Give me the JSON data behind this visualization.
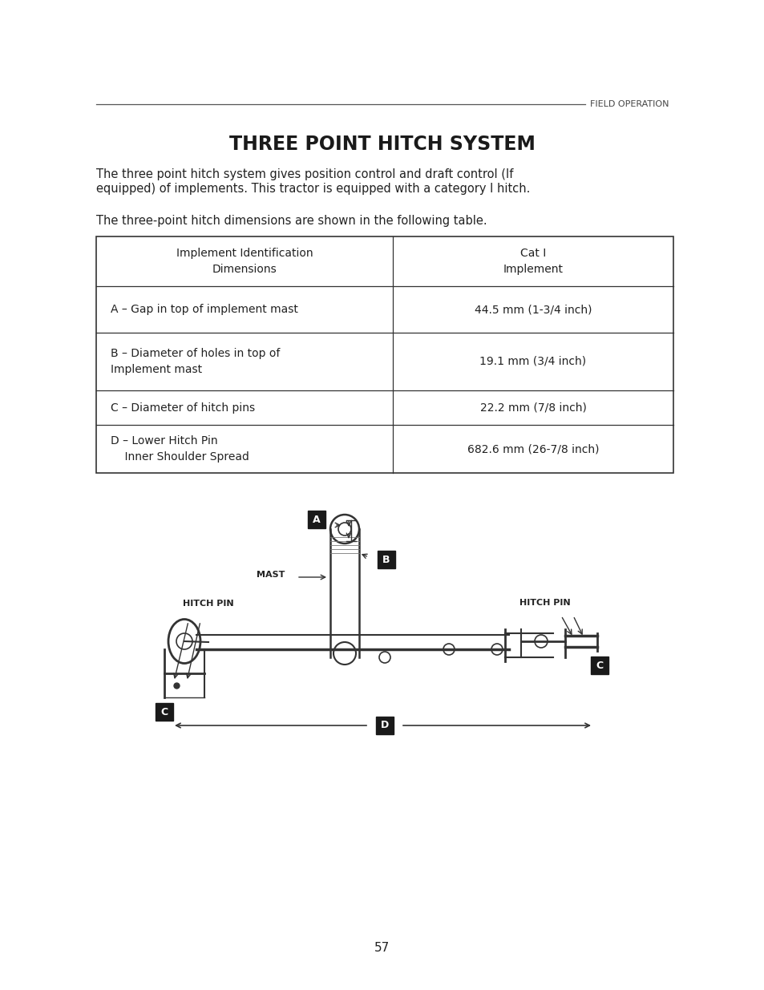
{
  "bg_color": "#ffffff",
  "header_line_color": "#555555",
  "header_text": "FIELD OPERATION",
  "title": "THREE POINT HITCH SYSTEM",
  "para1": "The three point hitch system gives position control and draft control (If\nequipped) of implements. This tractor is equipped with a category I hitch.",
  "para2": "The three-point hitch dimensions are shown in the following table.",
  "table_headers": [
    "Implement Identification\nDimensions",
    "Cat I\nImplement"
  ],
  "table_rows": [
    [
      "A – Gap in top of implement mast",
      "44.5 mm (1-3/4 inch)"
    ],
    [
      "B – Diameter of holes in top of\nImplement mast",
      "19.1 mm (3/4 inch)"
    ],
    [
      "C – Diameter of hitch pins",
      "22.2 mm (7/8 inch)"
    ],
    [
      "D – Lower Hitch Pin\n    Inner Shoulder Spread",
      "682.6 mm (26-7/8 inch)"
    ]
  ],
  "page_number": "57",
  "label_bg": "#1a1a1a",
  "label_fg": "#ffffff",
  "diagram_labels": [
    "A",
    "B",
    "C",
    "C",
    "D"
  ],
  "diagram_callouts": [
    "MAST",
    "HITCH PIN",
    "HITCH PIN"
  ]
}
